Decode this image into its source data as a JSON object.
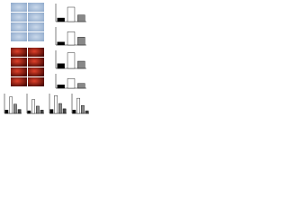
{
  "chart_data": [
    {
      "type": "bar",
      "values": [
        0.6,
        2.4,
        1.1
      ],
      "colors": [
        "#000000",
        "#ffffff",
        "#888888"
      ],
      "ylim": [
        0,
        3
      ]
    },
    {
      "type": "bar",
      "values": [
        0.5,
        2.2,
        1.3
      ],
      "colors": [
        "#000000",
        "#ffffff",
        "#888888"
      ],
      "ylim": [
        0,
        3
      ]
    },
    {
      "type": "bar",
      "values": [
        0.8,
        2.6,
        1.2
      ],
      "colors": [
        "#000000",
        "#ffffff",
        "#888888"
      ],
      "ylim": [
        0,
        3
      ]
    },
    {
      "type": "bar",
      "values": [
        0.7,
        2.0,
        1.0
      ],
      "colors": [
        "#000000",
        "#ffffff",
        "#888888"
      ],
      "ylim": [
        0,
        3
      ]
    },
    {
      "type": "bar",
      "values": [
        0.5,
        2.5,
        1.4,
        0.6
      ],
      "colors": [
        "#000000",
        "#ffffff",
        "#888888",
        "#444444"
      ],
      "ylim": [
        0,
        3
      ]
    },
    {
      "type": "bar",
      "values": [
        0.4,
        2.1,
        1.1,
        0.5
      ],
      "colors": [
        "#000000",
        "#ffffff",
        "#888888",
        "#444444"
      ],
      "ylim": [
        0,
        3
      ]
    },
    {
      "type": "bar",
      "values": [
        0.6,
        2.7,
        1.5,
        0.7
      ],
      "colors": [
        "#000000",
        "#ffffff",
        "#888888",
        "#444444"
      ],
      "ylim": [
        0,
        3
      ]
    },
    {
      "type": "bar",
      "values": [
        0.5,
        2.3,
        1.2,
        0.4
      ],
      "colors": [
        "#000000",
        "#ffffff",
        "#888888",
        "#444444"
      ],
      "ylim": [
        0,
        3
      ]
    }
  ]
}
